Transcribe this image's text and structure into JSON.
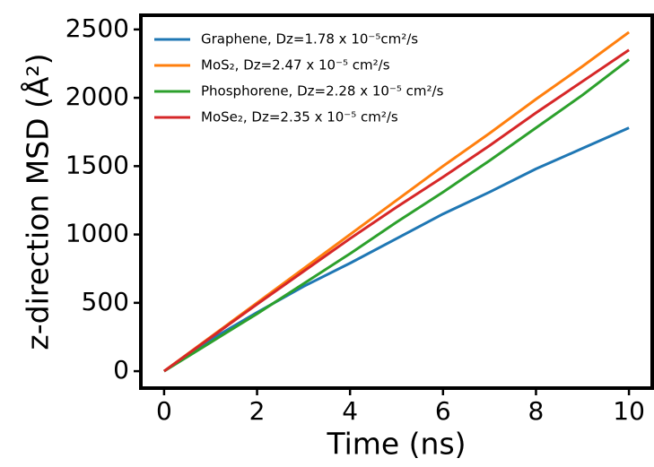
{
  "chart_data": {
    "type": "line",
    "x_label": "Time (ns)",
    "y_label": "z-direction MSD (Å²)",
    "x": [
      0,
      1,
      2,
      3,
      4,
      5,
      6,
      7,
      8,
      9,
      10
    ],
    "series": [
      {
        "name": "Graphene, Dz=1.78 x 10⁻⁵cm²/s",
        "color": "#1f77b4",
        "values": [
          0,
          230,
          430,
          620,
          790,
          970,
          1150,
          1310,
          1480,
          1630,
          1780
        ]
      },
      {
        "name": "MoS₂, Dz=2.47 x 10⁻⁵ cm²/s",
        "color": "#ff7f0e",
        "values": [
          0,
          250,
          500,
          750,
          1000,
          1250,
          1500,
          1740,
          1990,
          2230,
          2480
        ]
      },
      {
        "name": "Phosphorene, Dz=2.28 x 10⁻⁵ cm²/s",
        "color": "#2ca02c",
        "values": [
          0,
          210,
          420,
          640,
          860,
          1090,
          1310,
          1540,
          1780,
          2020,
          2280
        ]
      },
      {
        "name": "MoSe₂, Dz=2.35 x 10⁻⁵ cm²/s",
        "color": "#d62728",
        "values": [
          0,
          245,
          490,
          730,
          970,
          1200,
          1420,
          1650,
          1890,
          2120,
          2350
        ]
      }
    ],
    "xlim": [
      -0.5,
      10.5
    ],
    "xticks": [
      0,
      2,
      4,
      6,
      8,
      10
    ],
    "ylim": [
      -124,
      2604
    ],
    "yticks": [
      0,
      500,
      1000,
      1500,
      2000,
      2500
    ],
    "legend": "upper left"
  }
}
